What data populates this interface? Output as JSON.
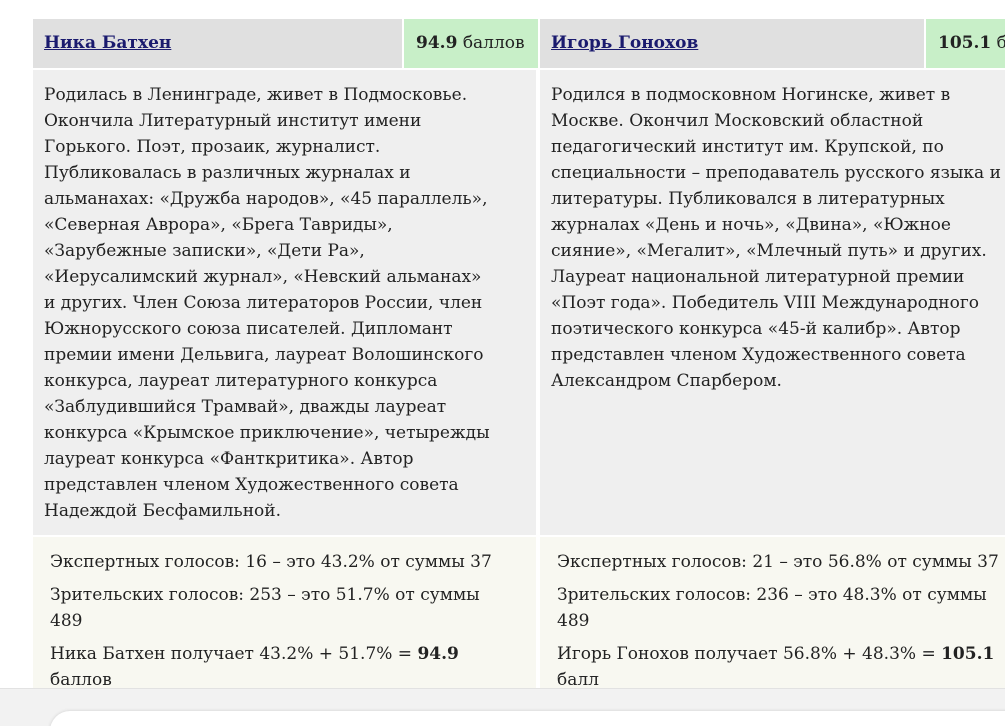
{
  "columns": [
    {
      "name": "Ника Батхен",
      "score": "94.9",
      "score_unit": "баллов",
      "bio": [
        "Родилась в Ленинграде, живет в Подмосковье.",
        "Окончила Литературный институт имени",
        "Горького. Поэт, прозаик, журналист.",
        "Публиковалась в различных журналах и",
        "альманахах: «Дружба народов», «45 параллель»,",
        "«Северная Аврора», «Брега Тавриды»,",
        "«Зарубежные записки», «Дети Ра»,",
        "«Иерусалимский журнал», «Невский альманах»",
        "и других. Член Союза литераторов России, член",
        "Южнорусского союза писателей. Дипломант",
        "премии имени Дельвига, лауреат Волошинского",
        "конкурса, лауреат литературного конкурса",
        "«Заблудившийся Трамвай», дважды лауреат",
        "конкурса «Крымское приключение», четырежды",
        "лауреат конкурса «Фанткритика». Автор",
        "представлен членом Художественного совета",
        "Надеждой Бесфамильной."
      ],
      "stats": [
        [
          "Экспертных голосов: 16 – это 43.2% от суммы 37"
        ],
        [
          "Зрительских голосов: 253 – это 51.7% от суммы",
          "489"
        ]
      ],
      "result": {
        "text": "Ника Батхен получает 43.2% + 51.7% = ",
        "bold": "94.9",
        "cont": "баллов"
      }
    },
    {
      "name": "Игорь Гонохов",
      "score": "105.1",
      "score_unit": "баллов",
      "bio": [
        "Родился в подмосковном Ногинске, живет в",
        "Москве. Окончил Московский областной",
        "педагогический институт им. Крупской, по",
        "специальности – преподаватель русского языка и",
        "литературы. Публиковался в литературных",
        "журналах «День и ночь», «Двина», «Южное",
        "сияние», «Мегалит», «Млечный путь» и других.",
        "Лауреат национальной литературной премии",
        "«Поэт года». Победитель VIII Международного",
        "поэтического конкурса «45-й калибр». Автор",
        "представлен членом Художественного совета",
        "Александром Спарбером."
      ],
      "stats": [
        [
          "Экспертных голосов: 21 – это 56.8% от суммы 37"
        ],
        [
          "Зрительских голосов: 236 – это 48.3% от суммы",
          "489"
        ]
      ],
      "result": {
        "text": "Игорь Гонохов получает 56.8% + 48.3% = ",
        "bold": "105.1",
        "cont": "балл"
      }
    }
  ]
}
